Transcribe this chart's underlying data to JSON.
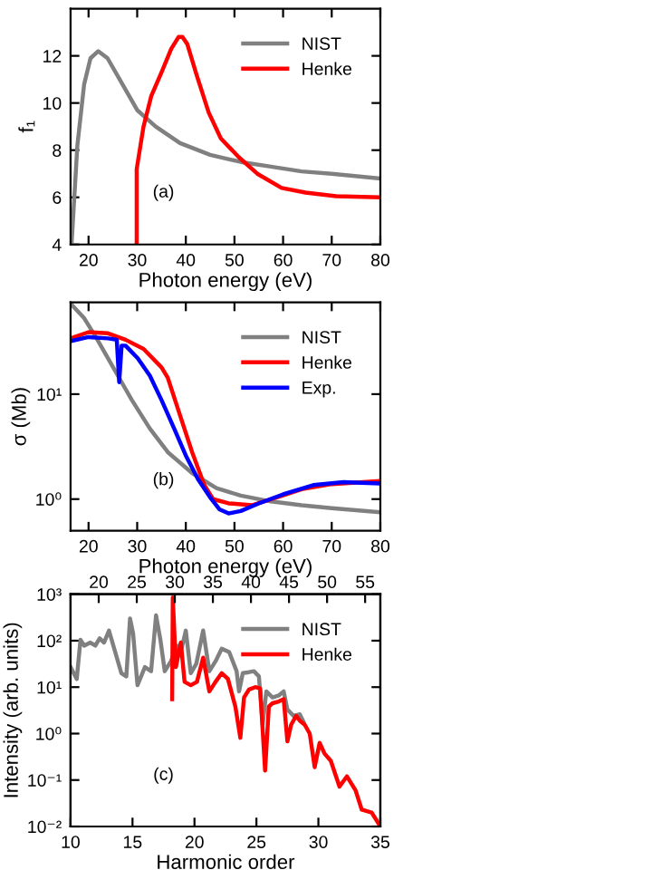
{
  "chart_data": [
    {
      "type": "line",
      "xlabel": "Photon energy (eV)",
      "ylabel": "f₁",
      "xlim": [
        16.3,
        80
      ],
      "ylim": [
        4,
        14
      ],
      "xticks": [
        20,
        30,
        40,
        50,
        60,
        70,
        80
      ],
      "yticks": [
        4,
        6,
        8,
        10,
        12
      ],
      "legend": "top right",
      "annotations": [
        "(a)"
      ],
      "series": [
        {
          "name": "NIST",
          "color": "#808080",
          "x": [
            16.5,
            17.7,
            19.1,
            20.4,
            22,
            23.9,
            26.4,
            30,
            33.8,
            38.8,
            45,
            51.3,
            57.5,
            63.8,
            70,
            80
          ],
          "values": [
            4,
            8.2,
            10.8,
            11.9,
            12.2,
            11.9,
            11,
            9.7,
            9.0,
            8.3,
            7.8,
            7.5,
            7.3,
            7.1,
            7.0,
            6.8
          ]
        },
        {
          "name": "Henke",
          "color": "#ff0000",
          "x": [
            29.9,
            29.9,
            31.3,
            32.9,
            35,
            37,
            38.5,
            39.3,
            40.3,
            42.2,
            44.7,
            47.2,
            50.9,
            54.7,
            59.7,
            64.6,
            70.9,
            80
          ],
          "values": [
            4,
            7.2,
            9.0,
            10.3,
            11.3,
            12.3,
            12.8,
            12.8,
            12.5,
            11.2,
            9.6,
            8.5,
            7.7,
            7.0,
            6.4,
            6.2,
            6.05,
            6.0
          ]
        }
      ]
    },
    {
      "type": "line",
      "xlabel": "Photon energy (eV)",
      "ylabel": "σ (Mb)",
      "log": "y",
      "xlim": [
        16.3,
        80
      ],
      "ylim": [
        0.5,
        75
      ],
      "xticks": [
        20,
        30,
        40,
        50,
        60,
        70,
        80
      ],
      "yticks": [
        {
          "value": 1,
          "label": "10⁰"
        },
        {
          "value": 10,
          "label": "10¹"
        }
      ],
      "legend": "top right",
      "annotations": [
        "(b)"
      ],
      "series": [
        {
          "name": "NIST",
          "color": "#808080",
          "x": [
            16.3,
            19.1,
            21.5,
            24,
            26.4,
            28.9,
            32.6,
            36.3,
            41.3,
            46.3,
            51.3,
            57.5,
            63.8,
            70,
            80
          ],
          "values": [
            73,
            53,
            35,
            22,
            14,
            8.8,
            4.7,
            2.8,
            1.77,
            1.27,
            1.08,
            0.95,
            0.875,
            0.82,
            0.75
          ]
        },
        {
          "name": "Henke",
          "color": "#ff0000",
          "x": [
            16.3,
            20,
            24,
            27.6,
            31.3,
            35,
            36.3,
            38.8,
            41.3,
            43.8,
            45.6,
            48.8,
            53.7,
            58.7,
            63.8,
            70,
            80
          ],
          "values": [
            34,
            39,
            38,
            33,
            27,
            18,
            14.3,
            6.3,
            2.8,
            1.36,
            1.0,
            0.91,
            0.875,
            1.04,
            1.24,
            1.39,
            1.49
          ]
        },
        {
          "name": "Exp.",
          "color": "#0000ff",
          "x": [
            16.3,
            20,
            24,
            25.8,
            26.3,
            26.8,
            27.6,
            30.1,
            32.6,
            35,
            37.6,
            40,
            42.5,
            45,
            46.9,
            48.8,
            51.3,
            55,
            60,
            66.2,
            72.4,
            80
          ],
          "values": [
            32,
            35,
            34,
            33,
            13,
            29,
            29,
            22,
            15,
            8.8,
            4.7,
            2.6,
            1.55,
            1.04,
            0.8,
            0.73,
            0.77,
            0.91,
            1.11,
            1.36,
            1.45,
            1.41
          ]
        }
      ]
    },
    {
      "type": "line",
      "xlabel": "Harmonic order",
      "ylabel": "Intensity (arb. units)",
      "log": "y",
      "xlim": [
        10,
        35
      ],
      "ylim": [
        0.01,
        1000
      ],
      "xticks": [
        10,
        15,
        20,
        25,
        30,
        35
      ],
      "x2lim": [
        16.3,
        57
      ],
      "x2ticks": [
        20,
        25,
        30,
        35,
        40,
        45,
        50,
        55
      ],
      "yticks": [
        {
          "value": 0.01,
          "label": "10⁻²"
        },
        {
          "value": 0.1,
          "label": "10⁻¹"
        },
        {
          "value": 1,
          "label": "10⁰"
        },
        {
          "value": 10,
          "label": "10¹"
        },
        {
          "value": 100,
          "label": "10²"
        },
        {
          "value": 1000,
          "label": "10³"
        }
      ],
      "legend": "top right",
      "annotations": [
        "(c)"
      ],
      "series": [
        {
          "name": "NIST",
          "color": "#808080",
          "x": [
            10,
            10.25,
            10.5,
            10.8,
            11.1,
            11.6,
            12,
            12.35,
            12.7,
            13.1,
            13.6,
            14.1,
            14.5,
            14.8,
            15.05,
            15.4,
            16,
            16.5,
            16.9,
            17.25,
            17.6,
            18.1,
            18.6,
            18.9,
            19.3,
            19.7,
            20.15,
            20.7,
            21.2,
            21.7,
            22.2,
            22.8,
            23.4,
            23.6,
            23.9,
            24.4,
            24.8,
            25.2,
            25.5,
            25.8,
            26.3,
            26.8,
            27.2,
            27.5,
            28,
            28.5,
            28.8
          ],
          "values": [
            27,
            20,
            15,
            105,
            78,
            91,
            78,
            112,
            91,
            165,
            57,
            20,
            17,
            300,
            141,
            11,
            27,
            22,
            350,
            105,
            22,
            36,
            78,
            57,
            165,
            20,
            32,
            165,
            22,
            36,
            67,
            57,
            22,
            8.1,
            20,
            21,
            22,
            17,
            1.55,
            8.1,
            6,
            6.6,
            8.1,
            3.3,
            2.4,
            2.6,
            1.8
          ]
        },
        {
          "name": "Henke",
          "color": "#ff0000",
          "x": [
            18.2,
            18.25,
            18.5,
            18.9,
            19.2,
            19.7,
            20.2,
            20.7,
            21.2,
            21.7,
            22.2,
            22.7,
            23.3,
            23.7,
            24,
            24.4,
            24.9,
            25.3,
            25.7,
            26.0,
            26.3,
            26.8,
            27.2,
            27.5,
            27.8,
            28.2,
            28.5,
            28.9,
            29.3,
            29.7,
            30.1,
            30.5,
            31,
            31.7,
            32.3,
            33,
            33.5,
            34.3,
            35
          ],
          "values": [
            5.5,
            850,
            27,
            91,
            13,
            11,
            13,
            43,
            8.1,
            13,
            20,
            15,
            3.8,
            0.81,
            6,
            8.9,
            10,
            9.4,
            0.16,
            3.8,
            4.5,
            4.9,
            5.5,
            0.68,
            1.55,
            2.4,
            1.9,
            1.55,
            1.0,
            0.19,
            0.63,
            0.37,
            0.26,
            0.072,
            0.12,
            0.06,
            0.023,
            0.02,
            0.01
          ]
        }
      ]
    }
  ]
}
